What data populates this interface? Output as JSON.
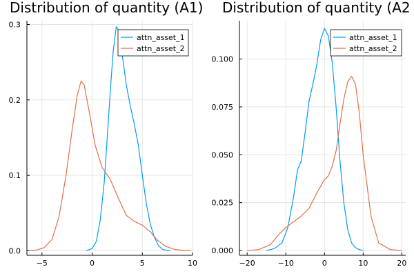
{
  "chart_data": [
    {
      "type": "line",
      "title": "Distribution of quantity (A1)",
      "xlabel": "",
      "ylabel": "",
      "xlim": [
        -6.5,
        10
      ],
      "ylim": [
        -0.006,
        0.305
      ],
      "xticks": [
        -5,
        0,
        5,
        10
      ],
      "yticks": [
        0.0,
        0.1,
        0.2,
        0.3
      ],
      "ytick_labels": [
        "0.0",
        "0.1",
        "0.2",
        "0.3"
      ],
      "grid": true,
      "legend_position": "top-right",
      "series": [
        {
          "name": "attn_asset_1",
          "color": "#009af9",
          "x": [
            -0.6,
            0.0,
            0.4,
            0.8,
            1.2,
            1.5,
            1.8,
            2.1,
            2.4,
            2.6,
            2.8,
            3.1,
            3.4,
            3.8,
            4.2,
            4.6,
            5.0,
            5.4,
            5.8,
            6.2,
            6.6,
            7.0,
            7.5,
            7.8
          ],
          "y": [
            0.0,
            0.003,
            0.012,
            0.04,
            0.09,
            0.15,
            0.21,
            0.265,
            0.297,
            0.293,
            0.278,
            0.25,
            0.22,
            0.192,
            0.168,
            0.14,
            0.1,
            0.062,
            0.035,
            0.018,
            0.007,
            0.002,
            0.0005,
            0.0
          ]
        },
        {
          "name": "attn_asset_2",
          "color": "#e26f46",
          "x": [
            -6.3,
            -5.5,
            -4.8,
            -4.0,
            -3.3,
            -2.6,
            -2.0,
            -1.5,
            -1.1,
            -0.8,
            -0.3,
            0.3,
            1.0,
            1.8,
            2.6,
            3.4,
            4.2,
            5.0,
            5.8,
            6.5,
            7.3,
            8.2,
            9.0,
            9.8
          ],
          "y": [
            0.0,
            0.001,
            0.004,
            0.015,
            0.045,
            0.1,
            0.16,
            0.205,
            0.225,
            0.22,
            0.185,
            0.14,
            0.11,
            0.095,
            0.07,
            0.047,
            0.039,
            0.034,
            0.025,
            0.014,
            0.006,
            0.002,
            0.0005,
            0.0
          ]
        }
      ]
    },
    {
      "type": "line",
      "title": "Distribution of quantity (A2",
      "xlabel": "",
      "ylabel": "",
      "xlim": [
        -22,
        21
      ],
      "ylim": [
        -0.0025,
        0.12
      ],
      "xticks": [
        -20,
        -10,
        0,
        10,
        20
      ],
      "yticks": [
        0.0,
        0.025,
        0.05,
        0.075,
        0.1
      ],
      "ytick_labels": [
        "0.000",
        "0.025",
        "0.050",
        "0.075",
        "0.100"
      ],
      "grid": true,
      "legend_position": "top-right",
      "series": [
        {
          "name": "attn_asset_1",
          "color": "#009af9",
          "x": [
            -15,
            -13,
            -11,
            -9.5,
            -8,
            -7,
            -6,
            -5,
            -4,
            -3,
            -2,
            -1,
            0,
            1,
            2,
            3,
            4,
            5,
            6,
            7,
            8,
            9,
            10
          ],
          "y": [
            0.0,
            0.001,
            0.004,
            0.012,
            0.028,
            0.042,
            0.047,
            0.062,
            0.078,
            0.087,
            0.097,
            0.11,
            0.116,
            0.112,
            0.098,
            0.075,
            0.047,
            0.025,
            0.011,
            0.004,
            0.0015,
            0.0005,
            0.0
          ]
        },
        {
          "name": "attn_asset_2",
          "color": "#e26f46",
          "x": [
            -20,
            -17,
            -14,
            -12,
            -10,
            -8,
            -6,
            -4,
            -2,
            0,
            1,
            2,
            3,
            4,
            5,
            6,
            7,
            8,
            9,
            10,
            12,
            14,
            17,
            20
          ],
          "y": [
            0.0,
            0.0005,
            0.003,
            0.008,
            0.012,
            0.015,
            0.018,
            0.022,
            0.03,
            0.037,
            0.039,
            0.044,
            0.052,
            0.066,
            0.079,
            0.088,
            0.091,
            0.087,
            0.072,
            0.05,
            0.018,
            0.004,
            0.0005,
            0.0
          ]
        }
      ]
    }
  ]
}
